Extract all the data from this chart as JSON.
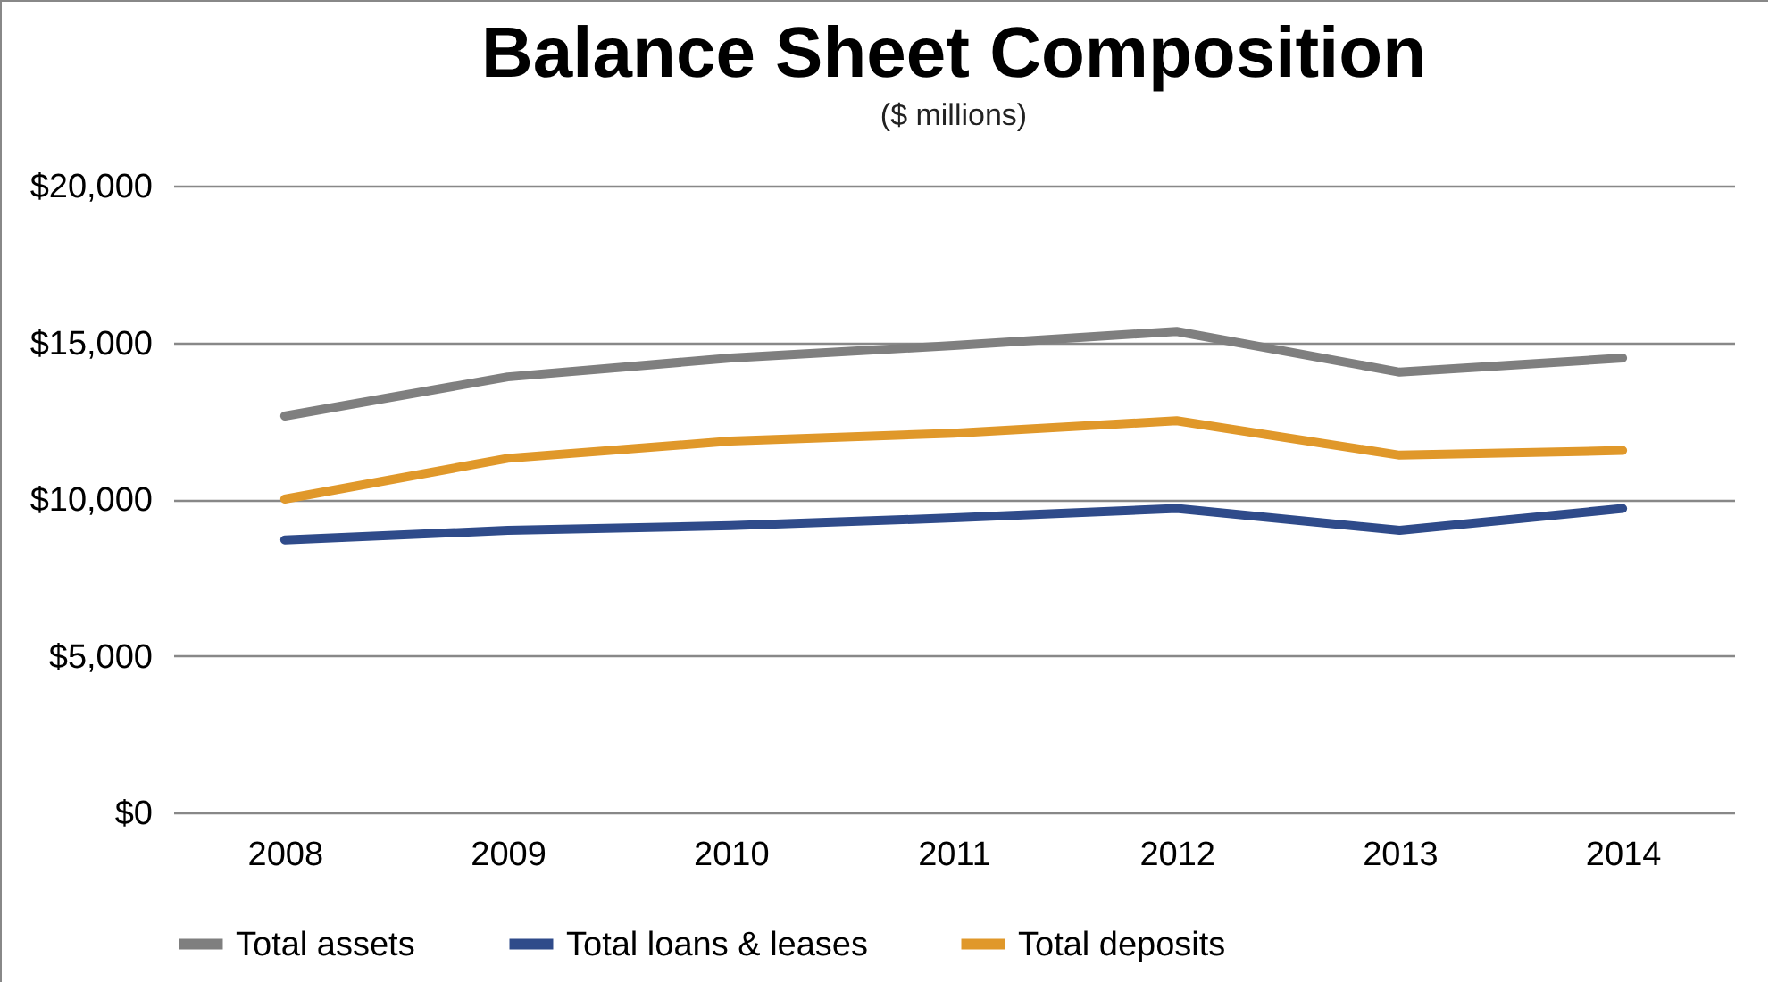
{
  "chart_data": {
    "type": "line",
    "title": "Balance Sheet Composition",
    "subtitle": "($ millions)",
    "categories": [
      "2008",
      "2009",
      "2010",
      "2011",
      "2012",
      "2013",
      "2014"
    ],
    "series": [
      {
        "name": "Total assets",
        "color": "#7f7f7f",
        "values": [
          12650,
          13900,
          14500,
          14900,
          15350,
          14050,
          14500
        ]
      },
      {
        "name": "Total loans & leases",
        "color": "#2f4b8a",
        "values": [
          8700,
          9000,
          9150,
          9400,
          9700,
          9000,
          9700
        ]
      },
      {
        "name": "Total deposits",
        "color": "#e0982a",
        "values": [
          10000,
          11300,
          11850,
          12100,
          12500,
          11400,
          11550
        ]
      }
    ],
    "ylim": [
      0,
      20000
    ],
    "yticks": [
      {
        "value": 0,
        "label": "$0"
      },
      {
        "value": 5000,
        "label": "$5,000"
      },
      {
        "value": 10000,
        "label": "$10,000"
      },
      {
        "value": 15000,
        "label": "$15,000"
      },
      {
        "value": 20000,
        "label": "$20,000"
      }
    ],
    "grid": "y",
    "legend": "bottom",
    "marker": "none",
    "line_style": "solid"
  }
}
